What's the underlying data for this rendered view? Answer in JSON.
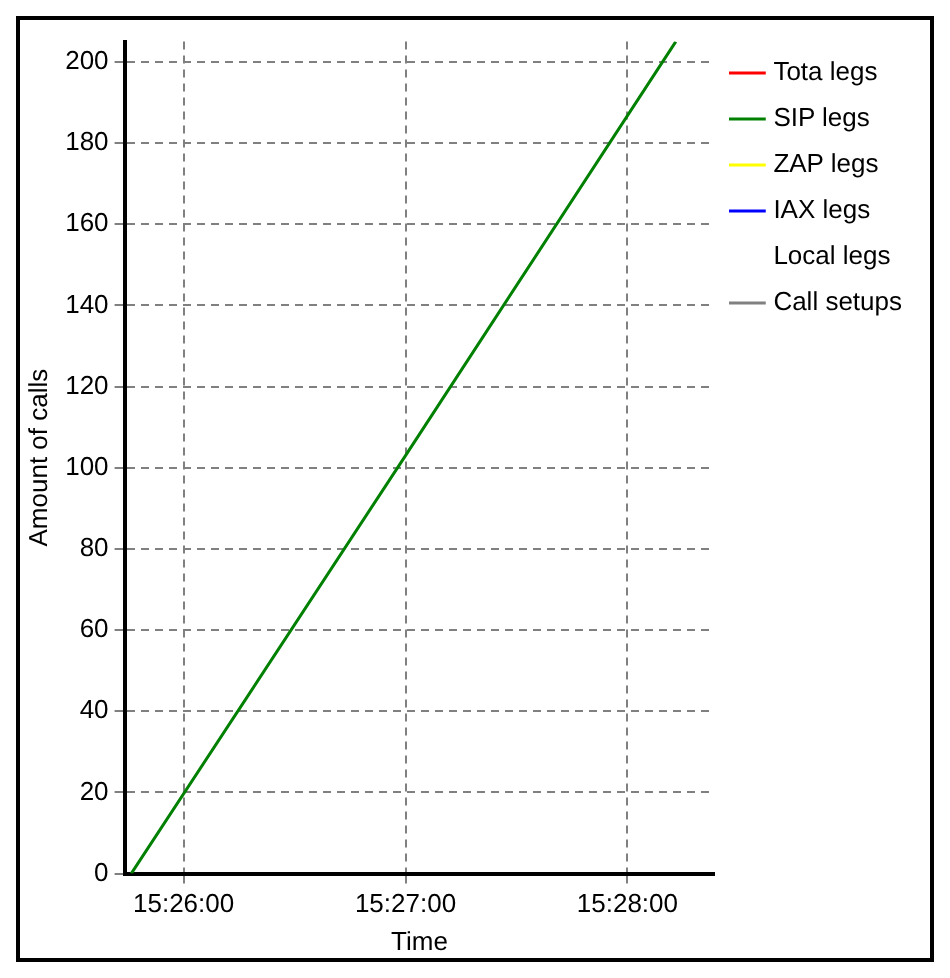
{
  "chart_data": {
    "type": "line",
    "xlabel": "Time",
    "ylabel": "Amount of calls",
    "xlim": [
      15.4289,
      15.4732
    ],
    "xticks": [
      {
        "value": 15.433333,
        "label": "15:26:00"
      },
      {
        "value": 15.45,
        "label": "15:27:00"
      },
      {
        "value": 15.466667,
        "label": "15:28:00"
      }
    ],
    "ylim": [
      0,
      205
    ],
    "yticks": [
      0,
      20,
      40,
      60,
      80,
      100,
      120,
      140,
      160,
      180,
      200
    ],
    "grid": true,
    "legend": "right",
    "marker": "none",
    "line_style": "solid",
    "series": [
      {
        "name": "Tota legs",
        "color": "#ff0000"
      },
      {
        "name": "SIP legs",
        "color": "#008000",
        "x": [
          15.4294,
          15.45,
          15.4703
        ],
        "values": [
          0,
          103,
          205
        ]
      },
      {
        "name": "ZAP legs",
        "color": "#ffff00"
      },
      {
        "name": "IAX legs",
        "color": "#0000ff"
      },
      {
        "name": "Local legs"
      },
      {
        "name": "Call setups",
        "color": "#808080"
      }
    ]
  }
}
